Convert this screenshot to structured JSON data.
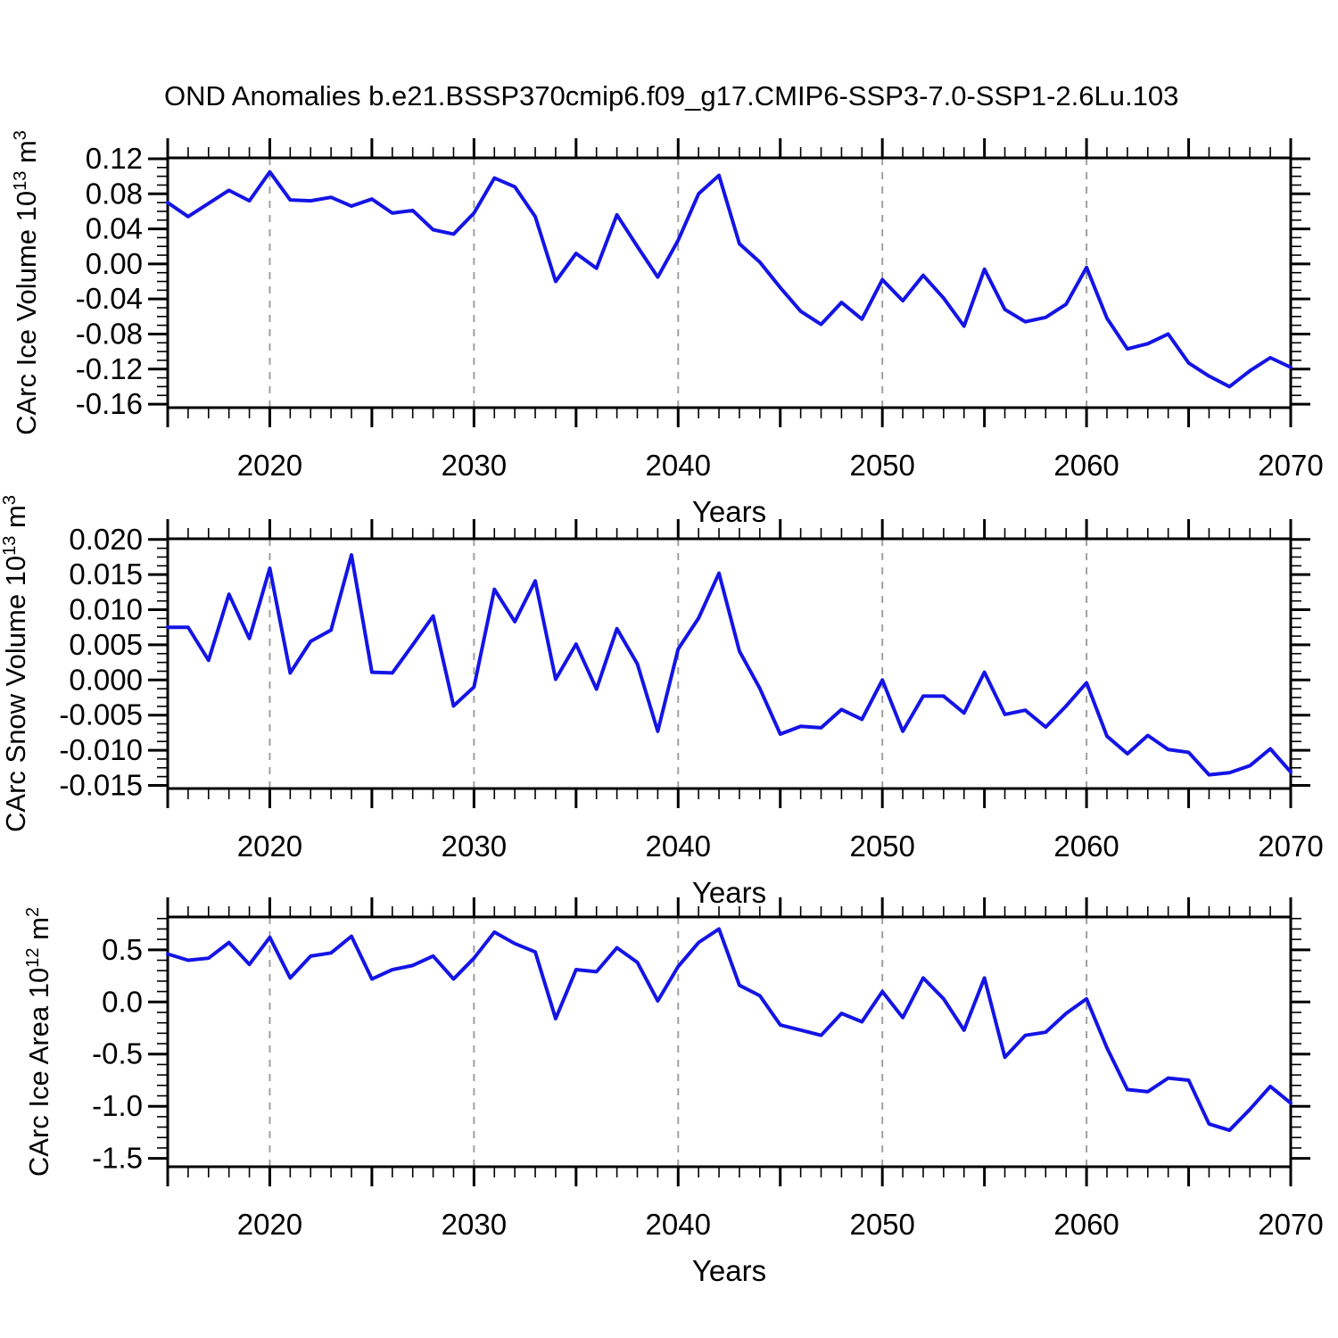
{
  "title": "OND Anomalies b.e21.BSSP370cmip6.f09_g17.CMIP6-SSP3-7.0-SSP1-2.6Lu.103",
  "colors": {
    "line": "#1414e6",
    "grid": "#a0a0a0",
    "axis": "#000000"
  },
  "x_axis": {
    "label": "Years",
    "min": 2015,
    "max": 2070,
    "major_tick_step": 5,
    "minor_tick_step": 1,
    "labeled_ticks": [
      2020,
      2030,
      2040,
      2050,
      2060,
      2070
    ],
    "gridlines": [
      2020,
      2030,
      2040,
      2050,
      2060
    ]
  },
  "years": [
    2015,
    2016,
    2017,
    2018,
    2019,
    2020,
    2021,
    2022,
    2023,
    2024,
    2025,
    2026,
    2027,
    2028,
    2029,
    2030,
    2031,
    2032,
    2033,
    2034,
    2035,
    2036,
    2037,
    2038,
    2039,
    2040,
    2041,
    2042,
    2043,
    2044,
    2045,
    2046,
    2047,
    2048,
    2049,
    2050,
    2051,
    2052,
    2053,
    2054,
    2055,
    2056,
    2057,
    2058,
    2059,
    2060,
    2061,
    2062,
    2063,
    2064,
    2065,
    2066,
    2067,
    2068,
    2069,
    2070
  ],
  "chart_data": [
    {
      "type": "line",
      "name": "ice-volume",
      "ylabel": {
        "base": "CArc Ice Volume 10",
        "exp": "13",
        "unit": " m",
        "unit_exp": "3"
      },
      "ylim": [
        -0.164,
        0.121
      ],
      "yticks": [
        0.12,
        0.08,
        0.04,
        0.0,
        -0.04,
        -0.08,
        -0.12,
        -0.16
      ],
      "ytick_labels": [
        "0.12",
        "0.08",
        "0.04",
        "0.00",
        "-0.04",
        "-0.08",
        "-0.12",
        "-0.16"
      ],
      "yminor": 0.01,
      "values": [
        0.07,
        0.054,
        0.069,
        0.084,
        0.072,
        0.105,
        0.073,
        0.072,
        0.076,
        0.066,
        0.074,
        0.058,
        0.061,
        0.039,
        0.034,
        0.058,
        0.098,
        0.088,
        0.054,
        -0.02,
        0.012,
        -0.005,
        0.056,
        0.02,
        -0.015,
        0.027,
        0.08,
        0.101,
        0.023,
        0.002,
        -0.027,
        -0.054,
        -0.069,
        -0.044,
        -0.063,
        -0.018,
        -0.042,
        -0.013,
        -0.039,
        -0.071,
        -0.006,
        -0.052,
        -0.066,
        -0.061,
        -0.046,
        -0.004,
        -0.062,
        -0.097,
        -0.091,
        -0.08,
        -0.113,
        -0.128,
        -0.14,
        -0.122,
        -0.107,
        -0.118
      ]
    },
    {
      "type": "line",
      "name": "snow-volume",
      "ylabel": {
        "base": "CArc Snow Volume 10",
        "exp": "13",
        "unit": " m",
        "unit_exp": "3"
      },
      "ylim": [
        -0.01545,
        0.0201
      ],
      "yticks": [
        0.02,
        0.015,
        0.01,
        0.005,
        0.0,
        -0.005,
        -0.01,
        -0.015
      ],
      "ytick_labels": [
        "0.020",
        "0.015",
        "0.010",
        "0.005",
        "0.000",
        "-0.005",
        "-0.010",
        "-0.015"
      ],
      "yminor": 0.00125,
      "values": [
        0.0075,
        0.0075,
        0.0028,
        0.0122,
        0.0059,
        0.0159,
        0.001,
        0.0055,
        0.0071,
        0.0178,
        0.0011,
        0.001,
        0.005,
        0.0091,
        -0.0037,
        -0.001,
        0.0129,
        0.0083,
        0.0141,
        0.0001,
        0.0051,
        -0.0013,
        0.0073,
        0.0023,
        -0.0073,
        0.0044,
        0.0088,
        0.0152,
        0.0041,
        -0.0012,
        -0.0077,
        -0.0066,
        -0.0068,
        -0.0042,
        -0.0056,
        0.0,
        -0.0073,
        -0.0023,
        -0.0023,
        -0.0047,
        0.0011,
        -0.0049,
        -0.0043,
        -0.0067,
        -0.0037,
        -0.0004,
        -0.008,
        -0.0105,
        -0.0079,
        -0.0099,
        -0.0103,
        -0.0135,
        -0.0132,
        -0.0122,
        -0.0098,
        -0.0131
      ]
    },
    {
      "type": "line",
      "name": "ice-area",
      "ylabel": {
        "base": "CArc Ice Area 10",
        "exp": "12",
        "unit": " m",
        "unit_exp": "2"
      },
      "ylim": [
        -1.58,
        0.815
      ],
      "yticks": [
        0.5,
        0.0,
        -0.5,
        -1.0,
        -1.5
      ],
      "ytick_labels": [
        "0.5",
        "0.0",
        "-0.5",
        "-1.0",
        "-1.5"
      ],
      "yminor": 0.1,
      "values": [
        0.46,
        0.4,
        0.42,
        0.57,
        0.36,
        0.62,
        0.23,
        0.44,
        0.47,
        0.63,
        0.22,
        0.31,
        0.35,
        0.44,
        0.22,
        0.42,
        0.67,
        0.56,
        0.48,
        -0.16,
        0.31,
        0.29,
        0.52,
        0.38,
        0.01,
        0.34,
        0.57,
        0.7,
        0.16,
        0.06,
        -0.22,
        -0.27,
        -0.32,
        -0.11,
        -0.19,
        0.1,
        -0.15,
        0.23,
        0.03,
        -0.27,
        0.23,
        -0.53,
        -0.32,
        -0.29,
        -0.11,
        0.03,
        -0.44,
        -0.84,
        -0.86,
        -0.73,
        -0.75,
        -1.17,
        -1.23,
        -1.03,
        -0.81,
        -0.97
      ]
    }
  ]
}
